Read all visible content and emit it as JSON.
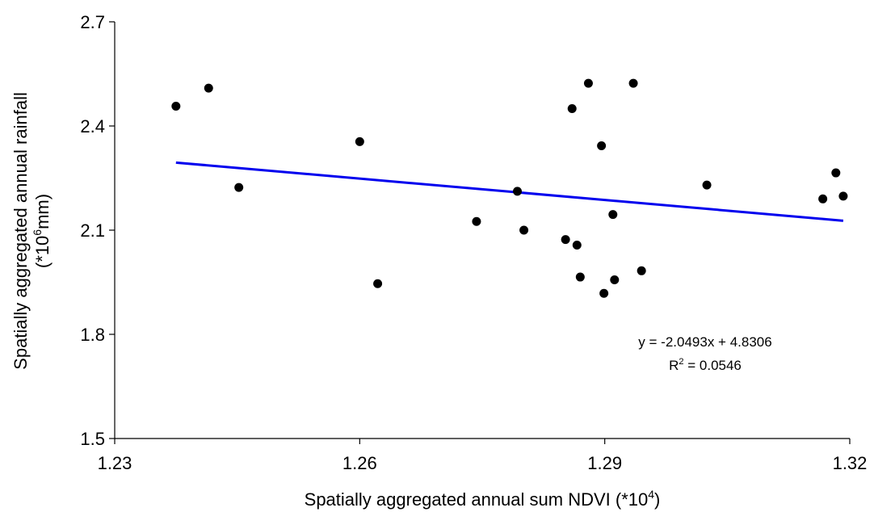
{
  "chart_data": {
    "type": "scatter",
    "xlabel": {
      "text": "Spatially aggregated annual sum NDVI (*10",
      "sup": "4",
      "tail": ")"
    },
    "ylabel": {
      "line1": "Spatially aggregated annual rainfall",
      "line2_pre": "(*10",
      "line2_sup": "6",
      "line2_post": "mm)"
    },
    "xlim": [
      1.23,
      1.32
    ],
    "ylim": [
      1.5,
      2.7
    ],
    "xticks": [
      1.23,
      1.26,
      1.29,
      1.32
    ],
    "xtick_labels": [
      "1.23",
      "1.26",
      "1.29",
      "1.32"
    ],
    "yticks": [
      1.5,
      1.8,
      2.1,
      2.4,
      2.7
    ],
    "ytick_labels": [
      "1.5",
      "1.8",
      "2.1",
      "2.4",
      "2.7"
    ],
    "grid": false,
    "points": [
      {
        "x": 1.2375,
        "y": 2.457
      },
      {
        "x": 1.2415,
        "y": 2.509
      },
      {
        "x": 1.2452,
        "y": 2.223
      },
      {
        "x": 1.26,
        "y": 2.355
      },
      {
        "x": 1.2622,
        "y": 1.946
      },
      {
        "x": 1.2743,
        "y": 2.125
      },
      {
        "x": 1.2793,
        "y": 2.212
      },
      {
        "x": 1.2801,
        "y": 2.1
      },
      {
        "x": 1.2852,
        "y": 2.073
      },
      {
        "x": 1.286,
        "y": 2.45
      },
      {
        "x": 1.2866,
        "y": 2.057
      },
      {
        "x": 1.287,
        "y": 1.965
      },
      {
        "x": 1.288,
        "y": 2.523
      },
      {
        "x": 1.2896,
        "y": 2.343
      },
      {
        "x": 1.2899,
        "y": 1.918
      },
      {
        "x": 1.291,
        "y": 2.145
      },
      {
        "x": 1.2912,
        "y": 1.957
      },
      {
        "x": 1.2935,
        "y": 2.523
      },
      {
        "x": 1.2945,
        "y": 1.983
      },
      {
        "x": 1.3025,
        "y": 2.23
      },
      {
        "x": 1.3167,
        "y": 2.19
      },
      {
        "x": 1.3183,
        "y": 2.265
      },
      {
        "x": 1.3192,
        "y": 2.198
      }
    ],
    "trendline": {
      "slope": -2.0493,
      "intercept": 4.8306,
      "x_range": [
        1.2375,
        1.3192
      ],
      "color": "#0000ee"
    },
    "equation_text": "y = -2.0493x + 4.8306",
    "r2": {
      "pre": "R",
      "sup": "2",
      "post": " = 0.0546"
    },
    "marker_color": "#000000"
  }
}
